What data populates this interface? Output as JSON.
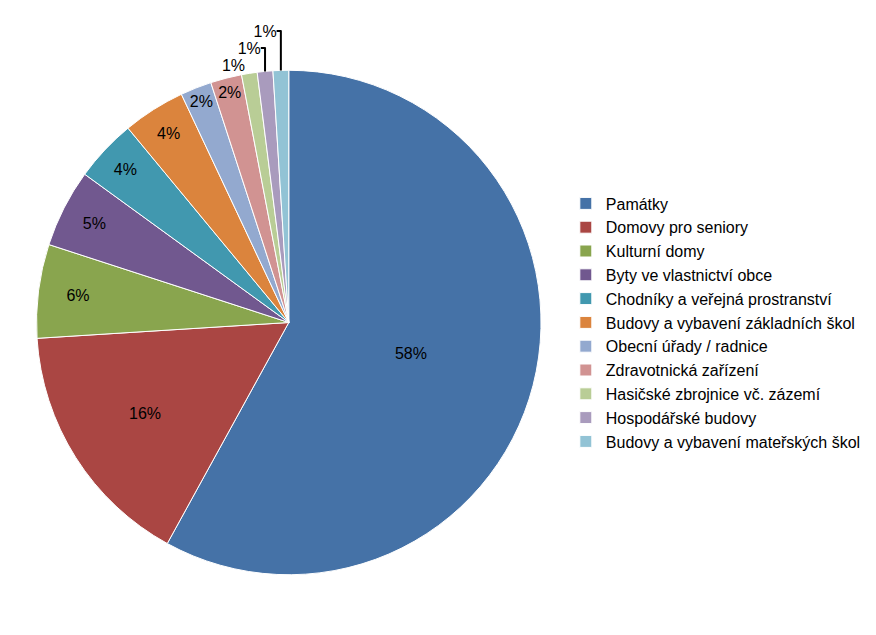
{
  "chart_data": {
    "type": "pie",
    "categories": [
      "Památky",
      "Domovy pro seniory",
      "Kulturní domy",
      "Byty ve vlastnictví obce",
      "Chodníky a veřejná prostranství",
      "Budovy a vybavení základních škol",
      "Obecní úřady / radnice",
      "Zdravotnická zařízení",
      "Hasičské zbrojnice vč. zázemí",
      "Hospodářské budovy",
      "Budovy a vybavení mateřských škol"
    ],
    "values": [
      58,
      16,
      6,
      5,
      4,
      4,
      2,
      2,
      1,
      1,
      1
    ],
    "value_labels": [
      "58%",
      "16%",
      "6%",
      "5%",
      "4%",
      "4%",
      "2%",
      "2%",
      "1%",
      "1%",
      "1%"
    ],
    "colors": [
      "#4572A7",
      "#AA4643",
      "#89A54E",
      "#71588F",
      "#4198AF",
      "#DB843D",
      "#93A9CF",
      "#D19392",
      "#B9CD96",
      "#A99BBD",
      "#92C3D5"
    ],
    "data_labels": true,
    "legend": "right"
  }
}
